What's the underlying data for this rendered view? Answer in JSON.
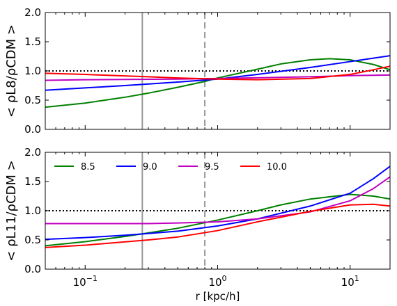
{
  "chart_data": [
    {
      "type": "line",
      "title": "",
      "ylabel": "< ρL8/ρCDM >",
      "xlabel": "",
      "xscale": "log",
      "xlim": [
        0.05,
        20
      ],
      "ylim": [
        0,
        2
      ],
      "yticks": [
        "0.0",
        "0.5",
        "1.0",
        "1.5",
        "2.0"
      ],
      "reference_lines": [
        {
          "kind": "horizontal",
          "y": 1.0,
          "style": "dotted",
          "color": "#000000"
        },
        {
          "kind": "vertical",
          "x": 0.27,
          "style": "solid",
          "color": "#999999"
        },
        {
          "kind": "vertical",
          "x": 0.8,
          "style": "dashed",
          "color": "#999999"
        }
      ],
      "series": [
        {
          "color": "#008000",
          "x": [
            0.05,
            0.1,
            0.2,
            0.3,
            0.5,
            0.8,
            1,
            2,
            3,
            5,
            7,
            10,
            15,
            20
          ],
          "y": [
            0.38,
            0.45,
            0.55,
            0.62,
            0.72,
            0.82,
            0.88,
            1.03,
            1.12,
            1.19,
            1.21,
            1.19,
            1.11,
            1.02
          ]
        },
        {
          "color": "#0000ff",
          "x": [
            0.05,
            0.1,
            0.2,
            0.5,
            1,
            2,
            5,
            10,
            20
          ],
          "y": [
            0.67,
            0.71,
            0.75,
            0.81,
            0.86,
            0.94,
            1.06,
            1.16,
            1.26
          ]
        },
        {
          "color": "#c000c0",
          "x": [
            0.05,
            0.1,
            0.5,
            1,
            5,
            10,
            20
          ],
          "y": [
            0.84,
            0.85,
            0.86,
            0.87,
            0.9,
            0.92,
            0.93
          ]
        },
        {
          "color": "#ff0000",
          "x": [
            0.05,
            0.1,
            0.3,
            0.5,
            1,
            2,
            5,
            10,
            15,
            20
          ],
          "y": [
            0.96,
            0.94,
            0.9,
            0.88,
            0.86,
            0.85,
            0.87,
            0.94,
            1.02,
            1.08
          ]
        }
      ]
    },
    {
      "type": "line",
      "title": "",
      "ylabel": "< ρL11/ρCDM >",
      "xlabel": "r [kpc/h]",
      "xscale": "log",
      "xlim": [
        0.05,
        20
      ],
      "ylim": [
        0,
        2
      ],
      "xticks": [
        {
          "base": "10",
          "exp": "−1"
        },
        {
          "base": "10",
          "exp": "0"
        },
        {
          "base": "10",
          "exp": "1"
        }
      ],
      "yticks": [
        "0.0",
        "0.5",
        "1.0",
        "1.5",
        "2.0"
      ],
      "legend": {
        "position": "upper-left",
        "columns": 4
      },
      "reference_lines": [
        {
          "kind": "horizontal",
          "y": 1.0,
          "style": "dotted",
          "color": "#000000"
        },
        {
          "kind": "vertical",
          "x": 0.27,
          "style": "solid",
          "color": "#999999"
        },
        {
          "kind": "vertical",
          "x": 0.8,
          "style": "dashed",
          "color": "#999999"
        }
      ],
      "series": [
        {
          "name": "8.5",
          "color": "#008000",
          "x": [
            0.05,
            0.1,
            0.2,
            0.3,
            0.5,
            1,
            2,
            3,
            5,
            10,
            15,
            20
          ],
          "y": [
            0.4,
            0.47,
            0.56,
            0.62,
            0.7,
            0.84,
            1.0,
            1.1,
            1.2,
            1.28,
            1.25,
            1.2
          ]
        },
        {
          "name": "9.0",
          "color": "#0000ff",
          "x": [
            0.05,
            0.1,
            0.2,
            0.3,
            0.5,
            1,
            2,
            5,
            10,
            15,
            20
          ],
          "y": [
            0.51,
            0.54,
            0.58,
            0.61,
            0.65,
            0.74,
            0.86,
            1.08,
            1.3,
            1.55,
            1.76
          ]
        },
        {
          "name": "9.5",
          "color": "#c000c0",
          "x": [
            0.05,
            0.1,
            0.3,
            0.5,
            1,
            2,
            5,
            10,
            15,
            20
          ],
          "y": [
            0.78,
            0.78,
            0.78,
            0.79,
            0.81,
            0.86,
            0.98,
            1.17,
            1.38,
            1.58
          ]
        },
        {
          "name": "10.0",
          "color": "#ff0000",
          "x": [
            0.05,
            0.1,
            0.3,
            0.5,
            1,
            2,
            5,
            10,
            15,
            20
          ],
          "y": [
            0.37,
            0.41,
            0.5,
            0.55,
            0.66,
            0.81,
            0.99,
            1.1,
            1.11,
            1.08
          ]
        }
      ]
    }
  ]
}
